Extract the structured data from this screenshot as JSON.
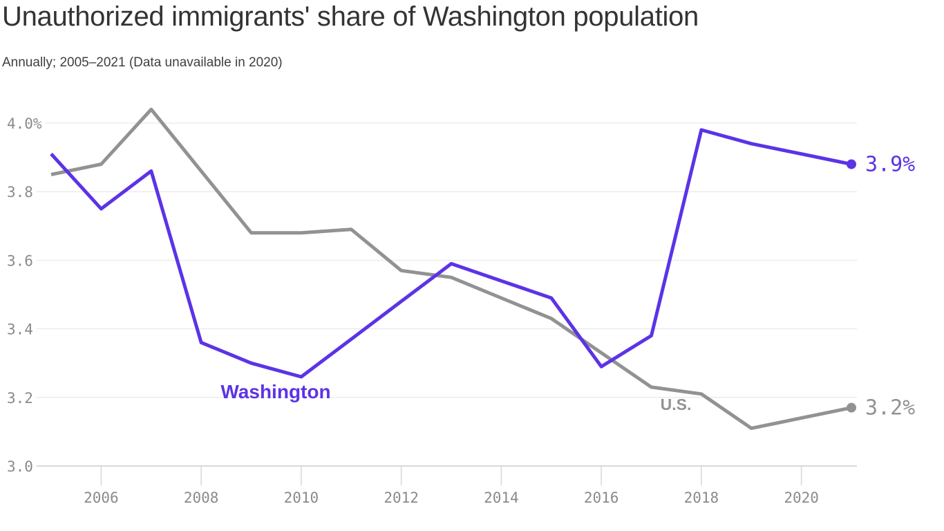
{
  "header": {
    "title": "Unauthorized immigrants' share of Washington population",
    "subtitle": "Annually; 2005–2021 (Data unavailable in 2020)"
  },
  "chart_data": {
    "type": "line",
    "title": "Unauthorized immigrants' share of Washington population",
    "subtitle": "Annually; 2005–2021 (Data unavailable in 2020)",
    "x": [
      2005,
      2006,
      2007,
      2008,
      2009,
      2010,
      2011,
      2012,
      2013,
      2014,
      2015,
      2016,
      2017,
      2018,
      2019,
      2020,
      2021
    ],
    "series": [
      {
        "name": "U.S.",
        "color": "#929292",
        "values": [
          3.85,
          3.88,
          4.04,
          3.86,
          3.68,
          3.68,
          3.69,
          3.57,
          3.55,
          3.49,
          3.43,
          3.33,
          3.23,
          3.21,
          3.11,
          null,
          3.17
        ],
        "end_label": "3.2%"
      },
      {
        "name": "Washington",
        "color": "#5c33e6",
        "values": [
          3.91,
          3.75,
          3.86,
          3.36,
          3.3,
          3.26,
          3.37,
          3.48,
          3.59,
          3.54,
          3.49,
          3.29,
          3.38,
          3.98,
          3.94,
          null,
          3.88
        ],
        "end_label": "3.9%"
      }
    ],
    "missing_years": [
      2020
    ],
    "xlabel": "",
    "ylabel": "",
    "xlim": [
      2005,
      2021
    ],
    "ylim": [
      3.0,
      4.05
    ],
    "yticks": [
      {
        "value": 4.0,
        "label": "4.0%"
      },
      {
        "value": 3.8,
        "label": "3.8"
      },
      {
        "value": 3.6,
        "label": "3.6"
      },
      {
        "value": 3.4,
        "label": "3.4"
      },
      {
        "value": 3.2,
        "label": "3.2"
      },
      {
        "value": 3.0,
        "label": "3.0"
      }
    ],
    "xticks": [
      "2006",
      "2008",
      "2010",
      "2012",
      "2014",
      "2016",
      "2018",
      "2020"
    ],
    "grid": "horizontal",
    "legend_position": "inline-annotations",
    "grid_color": "#e4e4e4",
    "axis_color": "#cccccc",
    "tick_color": "#d6d6d6",
    "tick_label_color": "#8a8a8a"
  }
}
